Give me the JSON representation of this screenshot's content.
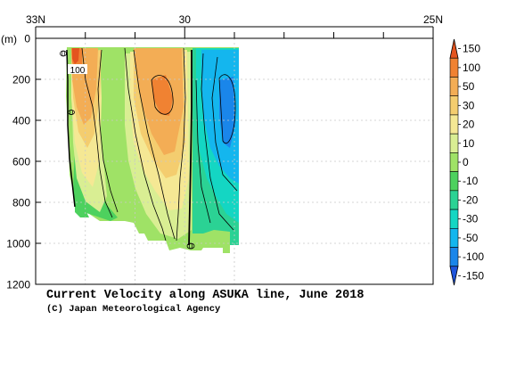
{
  "chart_data": {
    "type": "heatmap",
    "title": "Current Velocity along ASUKA line, June 2018",
    "credit": "(C) Japan Meteorological Agency",
    "ylabel": "(m)",
    "x_ticks": [
      {
        "value": 33,
        "label": "33N"
      },
      {
        "value": 30,
        "label": "30"
      },
      {
        "value": 25,
        "label": "25N"
      }
    ],
    "xlim": [
      33,
      25
    ],
    "ylim": [
      0,
      1200
    ],
    "y_ticks": [
      0,
      200,
      400,
      600,
      800,
      1000,
      1200
    ],
    "grid": true,
    "colorbar": {
      "labels": [
        "150",
        "100",
        "50",
        "30",
        "20",
        "10",
        "0",
        "-10",
        "-20",
        "-30",
        "-50",
        "-100",
        "-150"
      ],
      "colors": [
        "#e4541f",
        "#f08232",
        "#f3ad55",
        "#f4cd6f",
        "#f5e894",
        "#d9ee93",
        "#9fe266",
        "#4dd15e",
        "#2bd294",
        "#14d6c3",
        "#14b6ee",
        "#1a86ea",
        "#1f55dc"
      ]
    },
    "contour_labels": [
      "100",
      "0",
      "0",
      "0"
    ],
    "sections": [
      {
        "lat_from": 32.85,
        "lat_to": 32.55,
        "depth_max": 660,
        "value": 50
      },
      {
        "lat_from": 32.55,
        "lat_to": 31.95,
        "depth_max": 900,
        "value": 50
      },
      {
        "lat_from": 31.95,
        "lat_to": 31.0,
        "depth_max": 960,
        "value": 50
      },
      {
        "lat_from": 31.0,
        "lat_to": 30.05,
        "depth_max": 1040,
        "value": 60
      },
      {
        "lat_from": 30.05,
        "lat_to": 29.05,
        "depth_max": 1050,
        "value": -70
      }
    ]
  }
}
